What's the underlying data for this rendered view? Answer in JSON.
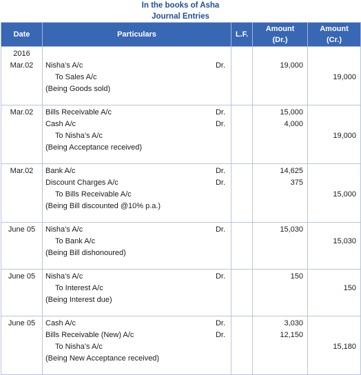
{
  "header": {
    "title_line1": "In the books of Asha",
    "title_line2": "Journal Entries"
  },
  "columns": {
    "date": "Date",
    "particulars": "Particulars",
    "lf": "L.F.",
    "amount_dr_1": "Amount",
    "amount_dr_2": "(Dr.)",
    "amount_cr_1": "Amount",
    "amount_cr_2": "(Cr.)"
  },
  "entries": [
    {
      "date_lines": [
        "2016",
        "Mar.02"
      ],
      "lines": [
        {
          "text": "Nisha’s A/c",
          "dr": "Dr.",
          "debit": "19,000",
          "credit": ""
        },
        {
          "text": "To Sales A/c",
          "dr": "",
          "debit": "",
          "credit": "19,000",
          "indent": true
        },
        {
          "text": "(Being Goods sold)",
          "dr": "",
          "debit": "",
          "credit": ""
        }
      ]
    },
    {
      "date_lines": [
        "Mar.02"
      ],
      "lines": [
        {
          "text": "Bills Receivable A/c",
          "dr": "Dr.",
          "debit": "15,000",
          "credit": ""
        },
        {
          "text": "Cash A/c",
          "dr": "Dr.",
          "debit": "4,000",
          "credit": ""
        },
        {
          "text": "To Nisha’s A/c",
          "dr": "",
          "debit": "",
          "credit": "19,000",
          "indent": true
        },
        {
          "text": "(Being Acceptance received)",
          "dr": "",
          "debit": "",
          "credit": ""
        }
      ]
    },
    {
      "date_lines": [
        "Mar.02"
      ],
      "lines": [
        {
          "text": "Bank A/c",
          "dr": "Dr.",
          "debit": "14,625",
          "credit": ""
        },
        {
          "text": "Discount Charges A/c",
          "dr": "Dr.",
          "debit": "375",
          "credit": ""
        },
        {
          "text": "To Bills Receivable A/c",
          "dr": "",
          "debit": "",
          "credit": "15,000",
          "indent": true
        },
        {
          "text": "(Being Bill discounted @10% p.a.)",
          "dr": "",
          "debit": "",
          "credit": ""
        }
      ]
    },
    {
      "date_lines": [
        "June 05"
      ],
      "lines": [
        {
          "text": "Nisha’s A/c",
          "dr": "Dr.",
          "debit": "15,030",
          "credit": ""
        },
        {
          "text": "To Bank A/c",
          "dr": "",
          "debit": "",
          "credit": "15,030",
          "indent": true
        },
        {
          "text": "(Being Bill dishonoured)",
          "dr": "",
          "debit": "",
          "credit": ""
        }
      ]
    },
    {
      "date_lines": [
        "June 05"
      ],
      "lines": [
        {
          "text": "Nisha’s A/c",
          "dr": "Dr.",
          "debit": "150",
          "credit": ""
        },
        {
          "text": "To Interest A/c",
          "dr": "",
          "debit": "",
          "credit": "150",
          "indent": true
        },
        {
          "text": "(Being Interest due)",
          "dr": "",
          "debit": "",
          "credit": ""
        }
      ]
    },
    {
      "date_lines": [
        "June 05"
      ],
      "lines": [
        {
          "text": "Cash A/c",
          "dr": "Dr.",
          "debit": "3,030",
          "credit": ""
        },
        {
          "text": "Bills Receivable (New) A/c",
          "dr": "Dr.",
          "debit": "12,150",
          "credit": ""
        },
        {
          "text": "To Nisha’s A/c",
          "dr": "",
          "debit": "",
          "credit": "15,180",
          "indent": true
        },
        {
          "text": "(Being New Acceptance received)",
          "dr": "",
          "debit": "",
          "credit": ""
        }
      ]
    }
  ]
}
